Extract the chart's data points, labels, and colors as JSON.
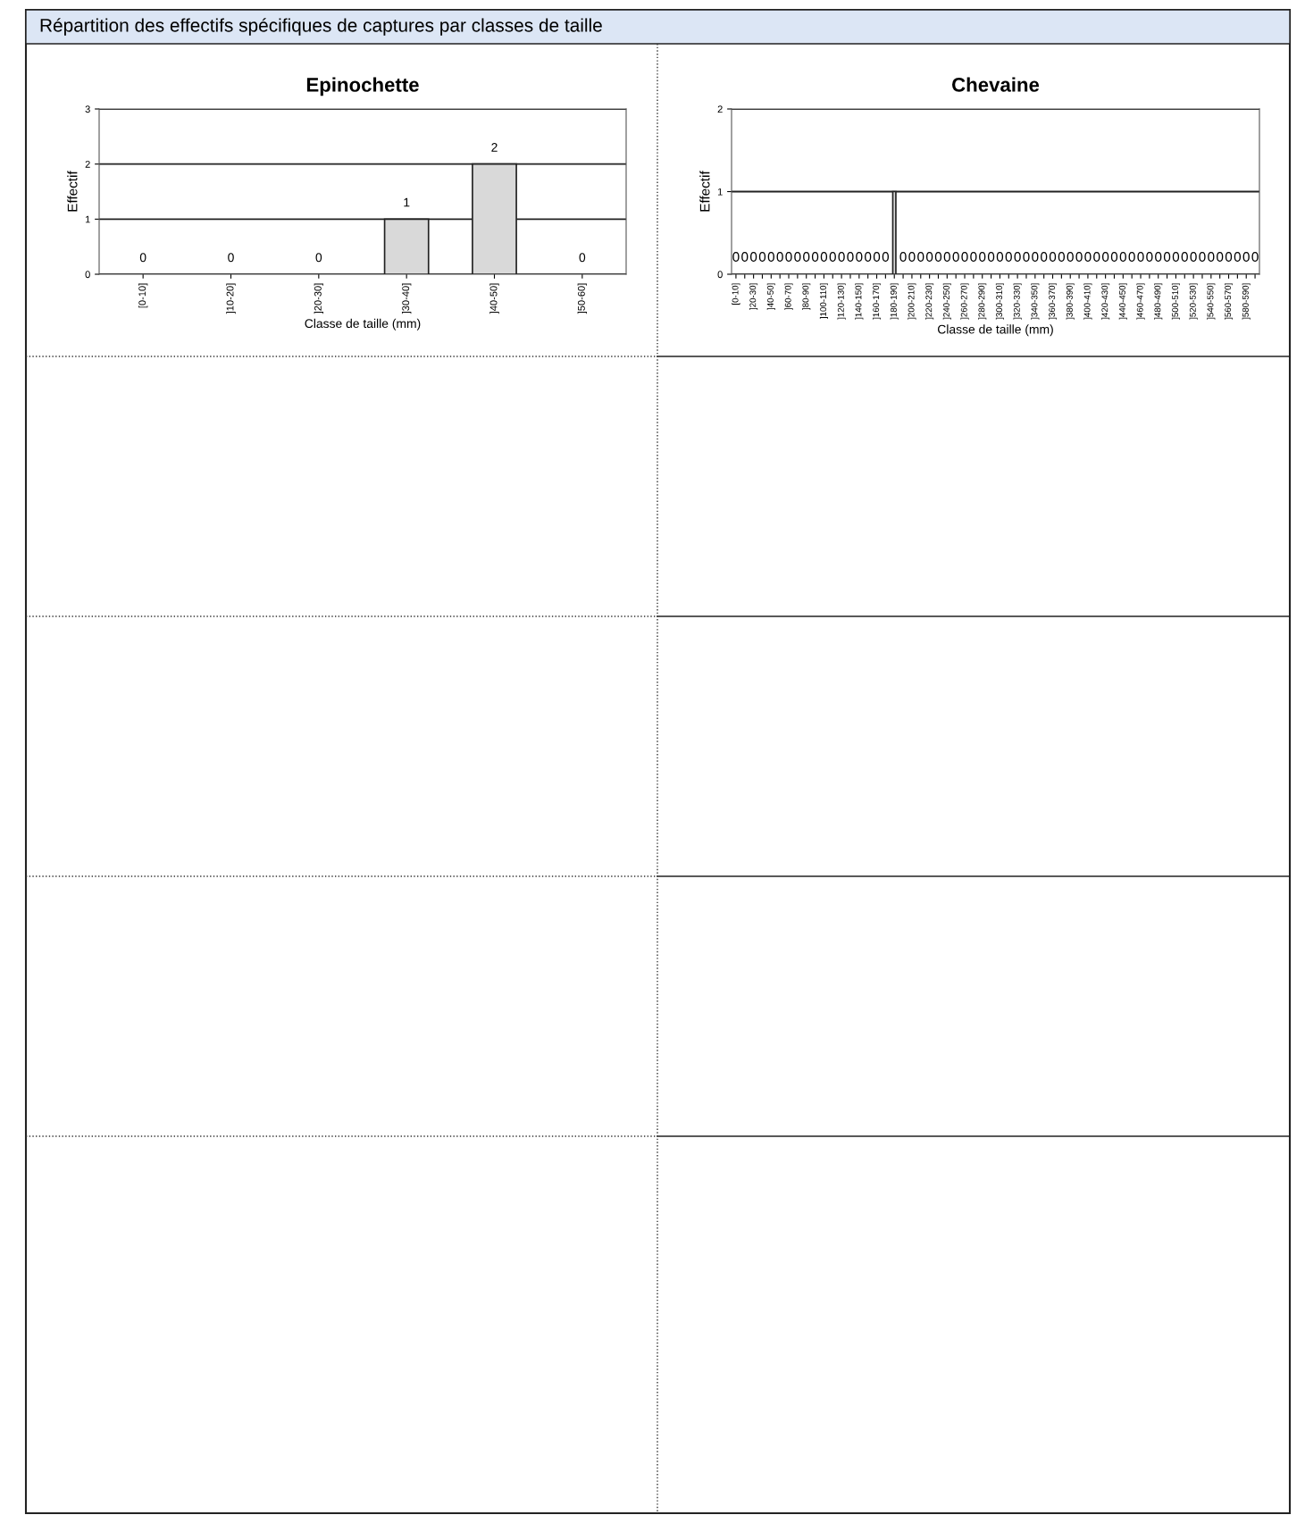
{
  "chart_data": [
    {
      "type": "bar",
      "title": "Epinochette",
      "annotations": [
        "Répartition des effectifs spécifiques de captures par classes de taille"
      ],
      "xlabel": "Classe de taille (mm)",
      "ylabel": "Effectif",
      "categories": [
        "[0-10]",
        "]10-20]",
        "]20-30]",
        "]30-40]",
        "]40-50]",
        "]50-60]"
      ],
      "values": [
        0,
        0,
        0,
        1,
        2,
        0
      ],
      "color": "#d9d9d9",
      "ylim": [
        0,
        3
      ],
      "yticks": [
        0,
        1,
        2,
        3
      ],
      "grid": "y",
      "data_labels": true
    },
    {
      "type": "bar",
      "title": "Chevaine",
      "xlabel": "Classe de taille (mm)",
      "ylabel": "Effectif",
      "categories": [
        "[0-10]",
        null,
        "]20-30]",
        null,
        "]40-50]",
        null,
        "]60-70]",
        null,
        "]80-90]",
        null,
        "]100-110]",
        null,
        "]120-130]",
        null,
        "]140-150]",
        null,
        "]160-170]",
        null,
        "]180-190]",
        null,
        "]200-210]",
        null,
        "]220-230]",
        null,
        "]240-250]",
        null,
        "]260-270]",
        null,
        "]280-290]",
        null,
        "]300-310]",
        null,
        "]320-330]",
        null,
        "]340-350]",
        null,
        "]360-370]",
        null,
        "]380-390]",
        null,
        "]400-410]",
        null,
        "]420-430]",
        null,
        "]440-450]",
        null,
        "]460-470]",
        null,
        "]480-490]",
        null,
        "]500-510]",
        null,
        "]520-530]",
        null,
        "]540-550]",
        null,
        "]560-570]",
        null,
        "]580-590]",
        null
      ],
      "values": [
        0,
        0,
        0,
        0,
        0,
        0,
        0,
        0,
        0,
        0,
        0,
        0,
        0,
        0,
        0,
        0,
        0,
        0,
        1,
        0,
        0,
        0,
        0,
        0,
        0,
        0,
        0,
        0,
        0,
        0,
        0,
        0,
        0,
        0,
        0,
        0,
        0,
        0,
        0,
        0,
        0,
        0,
        0,
        0,
        0,
        0,
        0,
        0,
        0,
        0,
        0,
        0,
        0,
        0,
        0,
        0,
        0,
        0,
        0,
        0
      ],
      "value_labels": [
        "0",
        "0",
        "0",
        "0",
        "0",
        "0",
        "0",
        "0",
        "0",
        "0",
        "0",
        "0",
        "0",
        "0",
        "0",
        "0",
        "0",
        "0",
        null,
        "0",
        "0",
        "0",
        "0",
        "0",
        "0",
        "0",
        "0",
        "0",
        "0",
        "0",
        "0",
        "0",
        "0",
        "0",
        "0",
        "0",
        "0",
        "0",
        "0",
        "0",
        "0",
        "0",
        "0",
        "0",
        "0",
        "0",
        "0",
        "0",
        "0",
        "0",
        "0",
        "0",
        "0",
        "0",
        "0",
        "0",
        "0",
        "0",
        "0",
        "0"
      ],
      "color": "#d9d9d9",
      "ylim": [
        0,
        2
      ],
      "yticks": [
        0,
        1,
        2
      ],
      "grid": "y"
    }
  ]
}
